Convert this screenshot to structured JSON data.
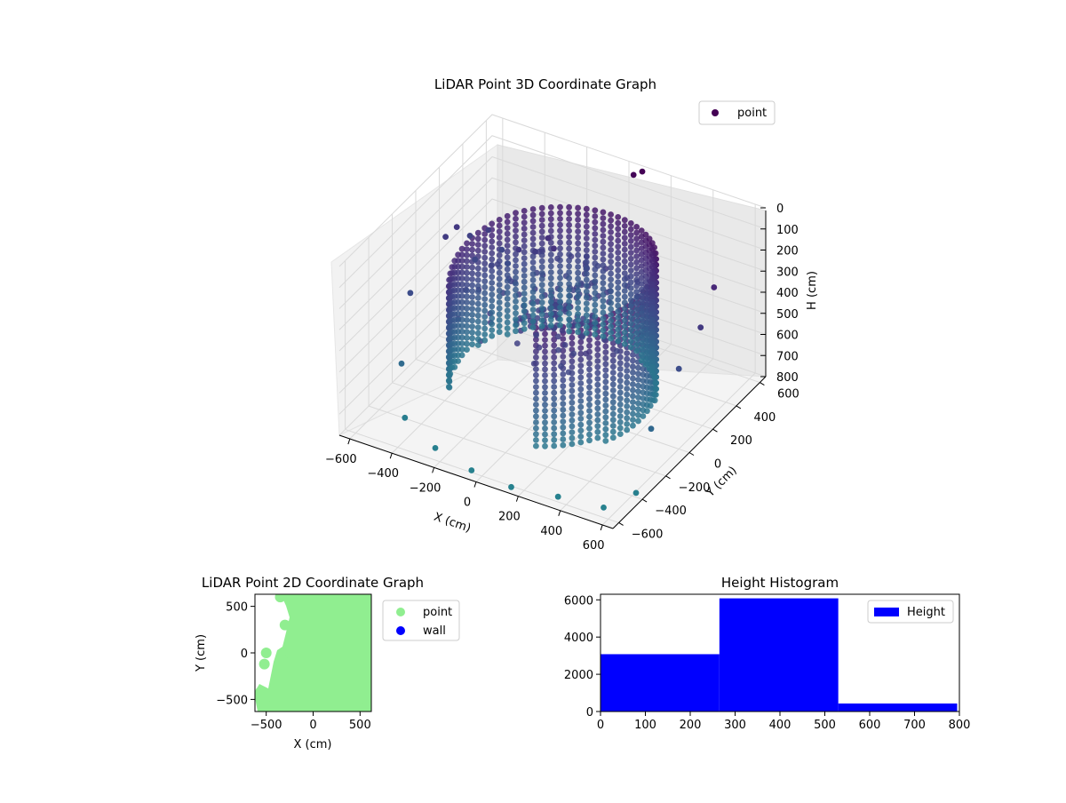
{
  "chart_data": [
    {
      "type": "scatter",
      "projection": "3d",
      "title": "LiDAR Point 3D Coordinate Graph",
      "xlabel": "X (cm)",
      "ylabel": "Y (cm)",
      "zlabel": "H (cm)",
      "xlim": [
        -650,
        650
      ],
      "ylim": [
        -650,
        650
      ],
      "zlim": [
        800,
        0
      ],
      "x_ticks": [
        "−600",
        "−400",
        "−200",
        "0",
        "200",
        "400",
        "600"
      ],
      "y_ticks": [
        "−600",
        "−400",
        "−200",
        "0",
        "200",
        "400",
        "600"
      ],
      "z_ticks": [
        "0",
        "100",
        "200",
        "300",
        "400",
        "500",
        "600",
        "700",
        "800"
      ],
      "legend": {
        "position": "top-right",
        "entries": [
          {
            "label": "point",
            "color": "#440154"
          }
        ]
      },
      "colormap": "viridis",
      "series": [
        {
          "name": "point",
          "description_of_shape": "dense ring-shaped wall of points from about 30 to 700 cm height, arc radius ~450 cm",
          "points": [
            {
              "x": -620,
              "y": 200,
              "z": 320
            },
            {
              "x": -600,
              "y": 260,
              "z": 300
            },
            {
              "x": -560,
              "y": 300,
              "z": 350
            },
            {
              "x": -500,
              "y": 350,
              "z": 330
            },
            {
              "x": -480,
              "y": 200,
              "z": 380
            },
            {
              "x": -420,
              "y": 320,
              "z": 380
            },
            {
              "x": -380,
              "y": 300,
              "z": 420
            },
            {
              "x": -300,
              "y": 250,
              "z": 300
            },
            {
              "x": -250,
              "y": 300,
              "z": 320
            },
            {
              "x": -200,
              "y": 320,
              "z": 250
            },
            {
              "x": -150,
              "y": 280,
              "z": 260
            },
            {
              "x": -620,
              "y": -100,
              "z": 420
            },
            {
              "x": -550,
              "y": -300,
              "z": 620
            },
            {
              "x": -450,
              "y": -450,
              "z": 760
            },
            {
              "x": -250,
              "y": -550,
              "z": 780
            },
            {
              "x": -50,
              "y": -600,
              "z": 790
            },
            {
              "x": 150,
              "y": -620,
              "z": 790
            },
            {
              "x": 350,
              "y": -580,
              "z": 790
            },
            {
              "x": 550,
              "y": -550,
              "z": 790
            },
            {
              "x": 620,
              "y": -400,
              "z": 780
            },
            {
              "x": 600,
              "y": 300,
              "z": 200
            },
            {
              "x": 620,
              "y": 150,
              "z": 300
            },
            {
              "x": 600,
              "y": 0,
              "z": 420
            },
            {
              "x": 580,
              "y": -200,
              "z": 600
            },
            {
              "x": 50,
              "y": 600,
              "z": 20
            },
            {
              "x": 80,
              "y": 620,
              "z": 5
            }
          ]
        }
      ]
    },
    {
      "type": "scatter",
      "title": "LiDAR Point 2D Coordinate Graph",
      "xlabel": "X (cm)",
      "ylabel": "Y (cm)",
      "xlim": [
        -620,
        620
      ],
      "ylim": [
        -630,
        630
      ],
      "x_ticks": [
        "−500",
        "0",
        "500"
      ],
      "y_ticks": [
        "500",
        "0",
        "−500"
      ],
      "legend": {
        "position": "outside-right",
        "entries": [
          {
            "label": "point",
            "color": "#90ee90"
          },
          {
            "label": "wall",
            "color": "#0000ff"
          }
        ]
      },
      "series": [
        {
          "name": "point",
          "color": "#90ee90",
          "points": [
            {
              "x": -500,
              "y": 0
            },
            {
              "x": -520,
              "y": -120
            },
            {
              "x": -560,
              "y": -420
            },
            {
              "x": -520,
              "y": -520
            },
            {
              "x": -420,
              "y": -560
            },
            {
              "x": -350,
              "y": -430
            },
            {
              "x": -310,
              "y": -150
            },
            {
              "x": -250,
              "y": 0
            },
            {
              "x": -350,
              "y": 600
            },
            {
              "x": -300,
              "y": 300
            },
            {
              "x": 0,
              "y": 0
            },
            {
              "x": 300,
              "y": 300
            },
            {
              "x": 500,
              "y": -500
            },
            {
              "x": 500,
              "y": 500
            }
          ]
        },
        {
          "name": "wall",
          "color": "#0000ff",
          "points": []
        }
      ]
    },
    {
      "type": "bar",
      "histogram": true,
      "title": "Height Histogram",
      "xlabel": "",
      "ylabel": "",
      "xlim": [
        0,
        800
      ],
      "ylim": [
        0,
        6300
      ],
      "x_ticks": [
        "0",
        "100",
        "200",
        "300",
        "400",
        "500",
        "600",
        "700",
        "800"
      ],
      "y_ticks": [
        "0",
        "2000",
        "4000",
        "6000"
      ],
      "legend": {
        "position": "top-right",
        "entries": [
          {
            "label": "Height",
            "color": "#0000ff"
          }
        ]
      },
      "bins": [
        {
          "start": 0,
          "end": 265,
          "count": 3080
        },
        {
          "start": 265,
          "end": 530,
          "count": 6080
        },
        {
          "start": 530,
          "end": 795,
          "count": 430
        }
      ],
      "color": "#0000ff"
    }
  ]
}
